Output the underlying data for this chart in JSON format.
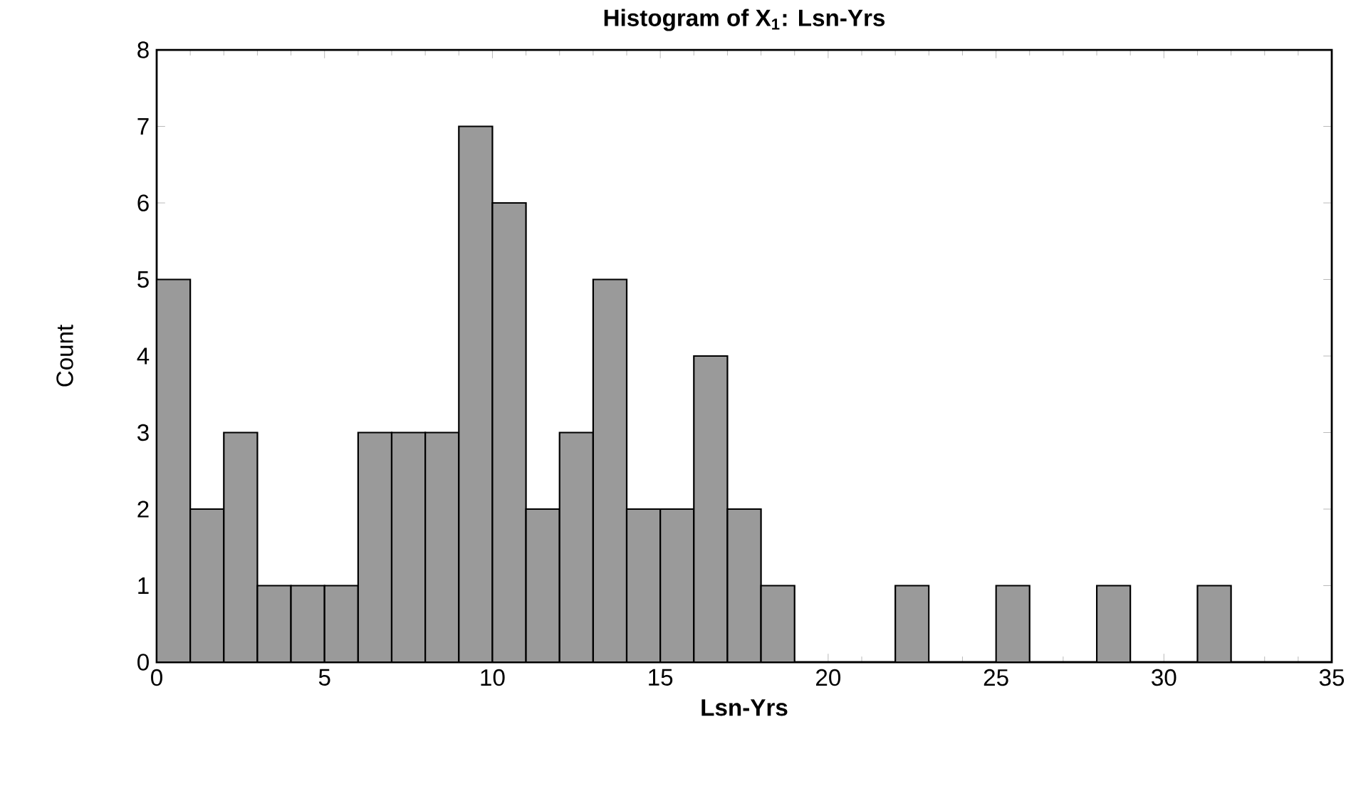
{
  "chart_data": {
    "type": "histogram",
    "title": "Histogram of X$_{1}$: Lsn-Yrs",
    "xlabel": "Lsn-Yrs",
    "ylabel": "Count",
    "bins": [
      0,
      1,
      2,
      3,
      4,
      5,
      6,
      7,
      8,
      9,
      10,
      11,
      12,
      13,
      14,
      15,
      16,
      17,
      18,
      19,
      20,
      21,
      22,
      23,
      24,
      25,
      26,
      27,
      28,
      29,
      30,
      31,
      32
    ],
    "values": [
      5,
      2,
      3,
      1,
      1,
      1,
      3,
      3,
      3,
      7,
      6,
      2,
      3,
      5,
      2,
      2,
      4,
      2,
      1,
      0,
      0,
      0,
      1,
      0,
      0,
      1,
      0,
      0,
      1,
      0,
      0,
      1
    ],
    "color": "#9a9a9a",
    "xlim": [
      0,
      35
    ],
    "ylim": [
      0,
      8
    ],
    "xticks": [
      0,
      5,
      10,
      15,
      20,
      25,
      30,
      35
    ],
    "yticks": [
      0,
      1,
      2,
      3,
      4,
      5,
      6,
      7,
      8
    ],
    "grid": false
  }
}
